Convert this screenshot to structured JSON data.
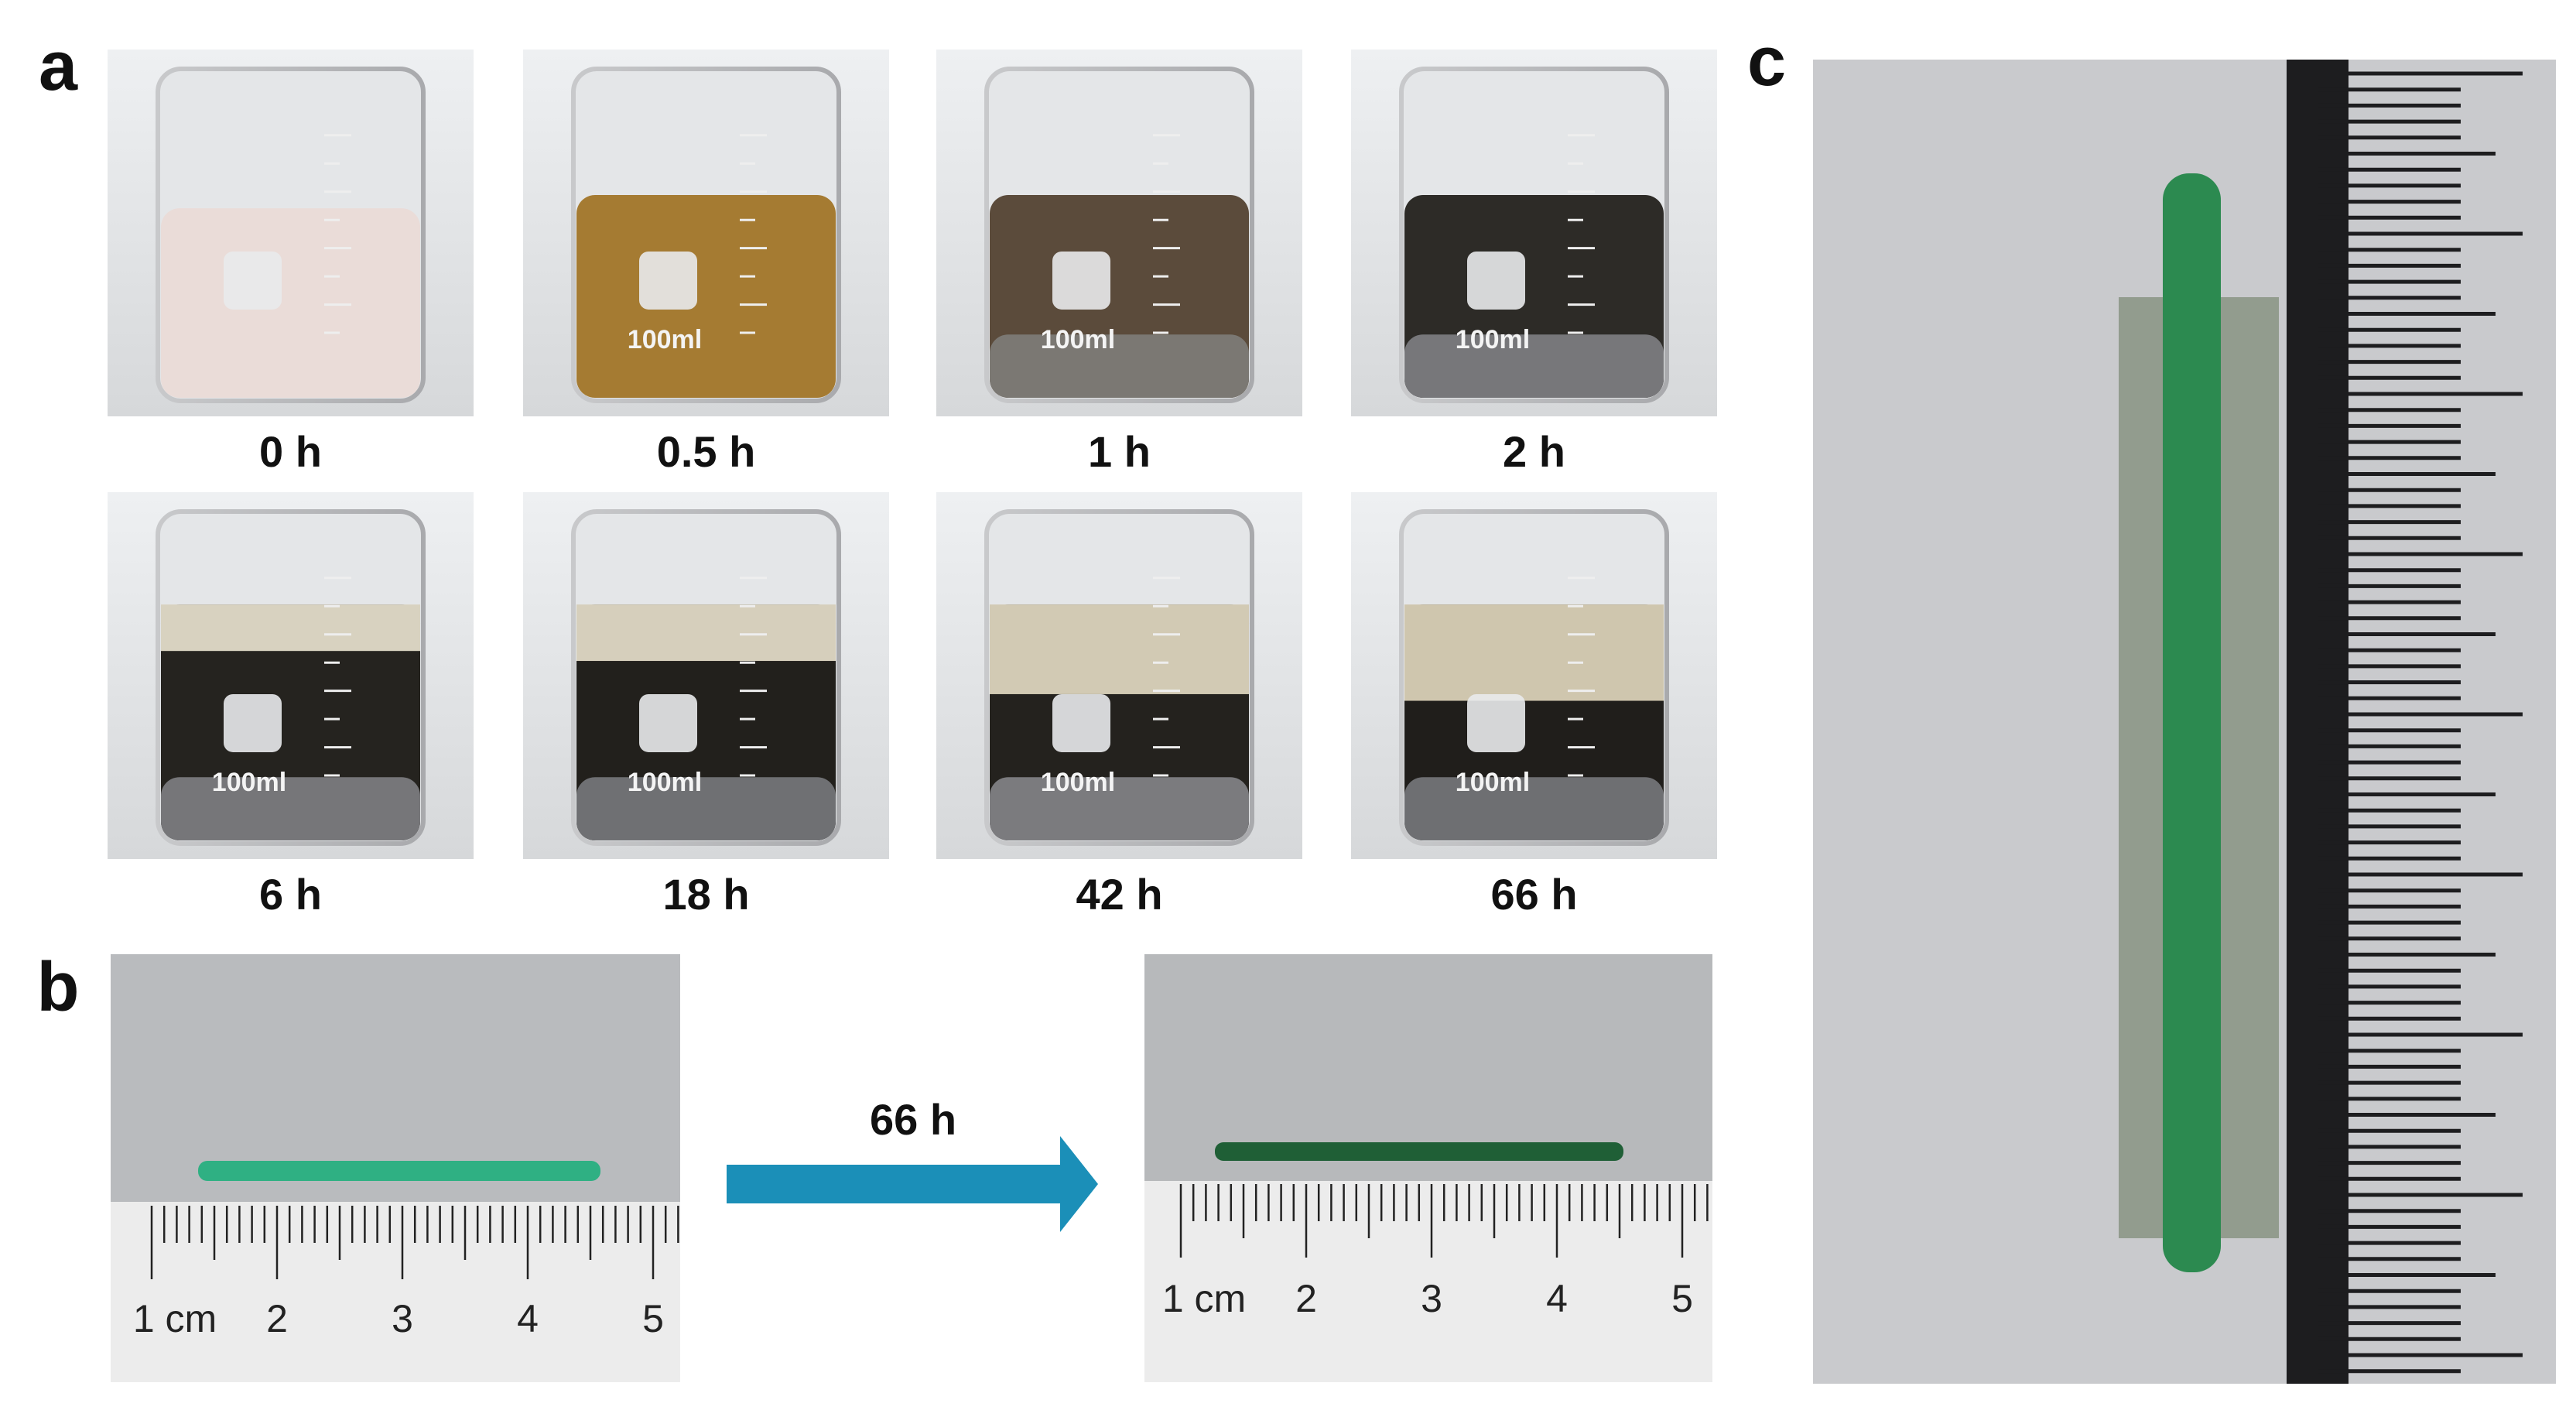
{
  "panel_a": {
    "label": "a",
    "beakers": [
      {
        "time": "0 h"
      },
      {
        "time": "0.5 h",
        "marking": "100ml"
      },
      {
        "time": "1 h",
        "marking": "100ml"
      },
      {
        "time": "2 h",
        "marking": "100ml"
      },
      {
        "time": "6 h",
        "marking": "100ml"
      },
      {
        "time": "18 h",
        "marking": "100ml"
      },
      {
        "time": "42 h",
        "marking": "100ml"
      },
      {
        "time": "66 h",
        "marking": "100ml"
      }
    ]
  },
  "panel_b": {
    "label": "b",
    "arrow_label": "66 h",
    "rulers": [
      {
        "labels": [
          "1 cm",
          "2",
          "3",
          "4",
          "5"
        ]
      },
      {
        "labels": [
          "1 cm",
          "2",
          "3",
          "4",
          "5"
        ]
      }
    ]
  },
  "panel_c": {
    "label": "c"
  }
}
